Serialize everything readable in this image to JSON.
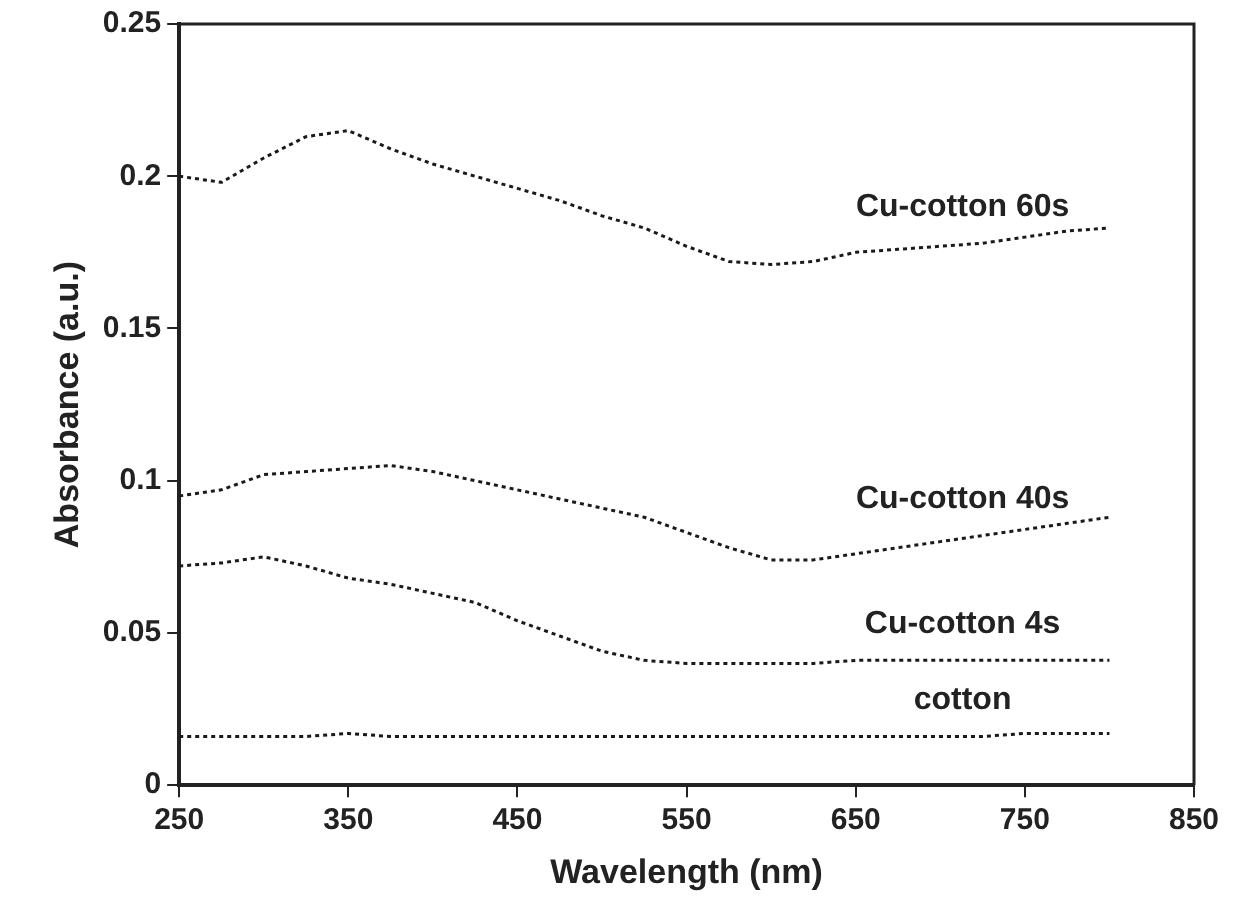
{
  "chart_data": {
    "type": "line",
    "xlabel": "Wavelength (nm)",
    "ylabel": "Absorbance (a.u.)",
    "x": [
      250,
      275,
      300,
      325,
      350,
      375,
      400,
      425,
      450,
      475,
      500,
      525,
      550,
      575,
      600,
      625,
      650,
      675,
      700,
      725,
      750,
      775,
      800
    ],
    "xlim": [
      250,
      850
    ],
    "xticks": [
      250,
      350,
      450,
      550,
      650,
      750,
      850
    ],
    "ylim": [
      0,
      0.25
    ],
    "yticks": [
      0,
      0.05,
      0.1,
      0.15,
      0.2,
      0.25
    ],
    "grid": false,
    "legend": false,
    "marker": "none",
    "line_style": "dotted",
    "series": [
      {
        "name": "Cu-cotton 60s",
        "color": "#1a1a1a",
        "values": [
          0.2,
          0.198,
          0.206,
          0.213,
          0.215,
          0.209,
          0.204,
          0.2,
          0.196,
          0.192,
          0.187,
          0.183,
          0.177,
          0.172,
          0.171,
          0.172,
          0.175,
          0.176,
          0.177,
          0.178,
          0.18,
          0.182,
          0.183
        ]
      },
      {
        "name": "Cu-cotton 40s",
        "color": "#1a1a1a",
        "values": [
          0.095,
          0.097,
          0.102,
          0.103,
          0.104,
          0.105,
          0.103,
          0.1,
          0.097,
          0.094,
          0.091,
          0.088,
          0.083,
          0.078,
          0.074,
          0.074,
          0.076,
          0.078,
          0.08,
          0.082,
          0.084,
          0.086,
          0.088
        ]
      },
      {
        "name": "Cu-cotton 4s",
        "color": "#1a1a1a",
        "values": [
          0.072,
          0.073,
          0.075,
          0.072,
          0.068,
          0.066,
          0.063,
          0.06,
          0.054,
          0.049,
          0.044,
          0.041,
          0.04,
          0.04,
          0.04,
          0.04,
          0.041,
          0.041,
          0.041,
          0.041,
          0.041,
          0.041,
          0.041
        ]
      },
      {
        "name": "cotton",
        "color": "#1a1a1a",
        "values": [
          0.016,
          0.016,
          0.016,
          0.016,
          0.017,
          0.016,
          0.016,
          0.016,
          0.016,
          0.016,
          0.016,
          0.016,
          0.016,
          0.016,
          0.016,
          0.016,
          0.016,
          0.016,
          0.016,
          0.016,
          0.017,
          0.017,
          0.017
        ]
      }
    ]
  }
}
